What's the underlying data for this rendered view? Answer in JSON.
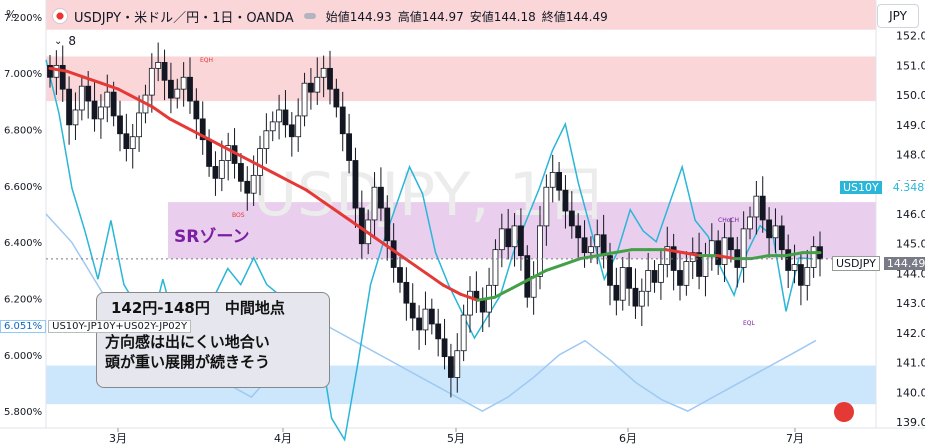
{
  "header": {
    "title": "USDJPY・米ドル／円・1日・OANDA",
    "ohlc": [
      {
        "label": "始値",
        "value": "144.93"
      },
      {
        "label": "高値",
        "value": "144.97"
      },
      {
        "label": "安値",
        "value": "144.18"
      },
      {
        "label": "終値",
        "value": "144.49"
      }
    ],
    "indicator_count": "8",
    "currency": "JPY",
    "left_unit": "%"
  },
  "annotations": {
    "sr_zone": "SRゾーン",
    "note_title": "142円-148円　中間地点",
    "note_line1": "方向感は出にくい地合い",
    "note_line2": "頭が重い展開が続きそう",
    "eqh": "EQH",
    "choch": "CHoCH",
    "eql": "EQL",
    "bos": "BOS",
    "watermark": "USDJPY, 1日"
  },
  "labels": {
    "left_value": "6.051%",
    "left_name": "US10Y-JP10Y+US02Y-JP02Y",
    "us10y_name": "US10Y",
    "us10y_value": "4.348%",
    "usdjpy_name": "USDJPY",
    "usdjpy_value": "144.49"
  },
  "colors": {
    "candle_up": "#ffffff",
    "candle_down": "#131722",
    "ma_bear": "#e53935",
    "ma_bull": "#43a047",
    "us10y_line": "#29b6d8",
    "spread_line": "#9ec9f3",
    "supply_zone": "#f8c8cc",
    "sr_zone": "#e1bee7",
    "demand_zone": "#bbdefb"
  },
  "chart_data": {
    "type": "candlestick",
    "symbol": "USDJPY",
    "timeframe": "1日",
    "x_ticks": [
      "3月",
      "4月",
      "5月",
      "6月",
      "7月"
    ],
    "y_right_ticks": [
      139,
      140,
      141,
      142,
      143,
      144,
      145,
      146,
      147,
      148,
      149,
      150,
      151,
      152
    ],
    "y_right_range": [
      138.8,
      153.2
    ],
    "y_left_ticks": [
      "7.200%",
      "7.000%",
      "6.800%",
      "6.600%",
      "6.400%",
      "6.200%",
      "6.000%",
      "5.800%"
    ],
    "y_left_range": [
      5.74,
      7.26
    ],
    "current_price": 144.49,
    "zones": [
      {
        "name": "supply",
        "from": 152.2,
        "to": 153.2
      },
      {
        "name": "supply",
        "from": 149.8,
        "to": 151.3
      },
      {
        "name": "sr",
        "from": 144.5,
        "to": 146.4
      },
      {
        "name": "demand",
        "from": 139.6,
        "to": 140.9
      }
    ],
    "candles_close_path": [
      150.6,
      151.0,
      150.2,
      149.0,
      149.5,
      150.3,
      149.8,
      149.2,
      149.6,
      150.1,
      149.3,
      148.7,
      148.2,
      148.6,
      149.4,
      150.0,
      150.9,
      151.1,
      150.5,
      149.9,
      150.2,
      150.6,
      149.8,
      149.2,
      148.5,
      147.6,
      147.2,
      147.8,
      148.3,
      147.7,
      147.1,
      146.7,
      147.3,
      148.2,
      148.8,
      149.1,
      149.5,
      149.0,
      148.6,
      149.3,
      150.4,
      150.1,
      150.6,
      150.9,
      150.2,
      149.6,
      148.7,
      147.8,
      146.2,
      145.0,
      145.8,
      146.9,
      146.2,
      145.1,
      144.2,
      143.7,
      143.0,
      142.5,
      142.1,
      142.8,
      142.3,
      141.8,
      141.2,
      140.5,
      141.4,
      142.6,
      143.4,
      143.1,
      142.7,
      143.6,
      144.8,
      145.5,
      144.9,
      145.6,
      144.6,
      143.2,
      143.9,
      145.6,
      146.9,
      147.4,
      146.8,
      146.1,
      145.6,
      145.2,
      144.7,
      144.9,
      145.3,
      144.6,
      143.6,
      143.1,
      144.2,
      143.5,
      142.9,
      143.4,
      144.1,
      143.7,
      144.3,
      144.9,
      144.1,
      143.6,
      144.4,
      144.7,
      143.9,
      144.6,
      145.1,
      144.3,
      145.2,
      144.8,
      144.2,
      145.5,
      145.9,
      146.6,
      145.8,
      145.2,
      145.6,
      144.8,
      144.1,
      144.3,
      143.6,
      144.2,
      144.9,
      144.49
    ],
    "ma_path": [
      150.9,
      150.8,
      150.6,
      150.4,
      150.2,
      149.9,
      149.6,
      149.2,
      148.9,
      148.6,
      148.3,
      148.0,
      147.7,
      147.4,
      147.1,
      146.8,
      146.4,
      146.0,
      145.6,
      145.2,
      144.8,
      144.4,
      144.0,
      143.6,
      143.3,
      143.1,
      143.2,
      143.5,
      143.8,
      144.1,
      144.3,
      144.5,
      144.6,
      144.7,
      144.8,
      144.8,
      144.8,
      144.7,
      144.6,
      144.6,
      144.5,
      144.5,
      144.6,
      144.6,
      144.7,
      144.7
    ],
    "us10y_path": [
      4.72,
      4.62,
      4.48,
      4.4,
      4.31,
      4.42,
      4.3,
      4.26,
      4.21,
      4.31,
      4.22,
      4.2,
      4.23,
      4.28,
      4.33,
      4.3,
      4.35,
      4.3,
      4.28,
      4.22,
      4.25,
      4.2,
      4.05,
      4.01,
      4.15,
      4.3,
      4.38,
      4.45,
      4.52,
      4.47,
      4.36,
      4.3,
      4.25,
      4.2,
      4.24,
      4.28,
      4.36,
      4.42,
      4.48,
      4.55,
      4.6,
      4.49,
      4.4,
      4.31,
      4.36,
      4.44,
      4.4,
      4.38,
      4.45,
      4.52,
      4.42,
      4.39,
      4.33,
      4.28,
      4.36,
      4.41,
      4.39,
      4.25,
      4.35,
      4.348
    ],
    "spread_path": [
      6.5,
      6.4,
      6.25,
      6.1,
      6.0,
      6.05,
      5.95,
      5.9,
      5.85,
      5.95,
      6.0,
      6.1,
      6.05,
      6.0,
      5.95,
      5.9,
      5.85,
      5.8,
      5.85,
      5.92,
      6.0,
      6.05,
      5.98,
      5.9,
      5.84,
      5.8,
      5.85,
      5.9,
      5.95,
      6.0,
      6.051
    ]
  }
}
